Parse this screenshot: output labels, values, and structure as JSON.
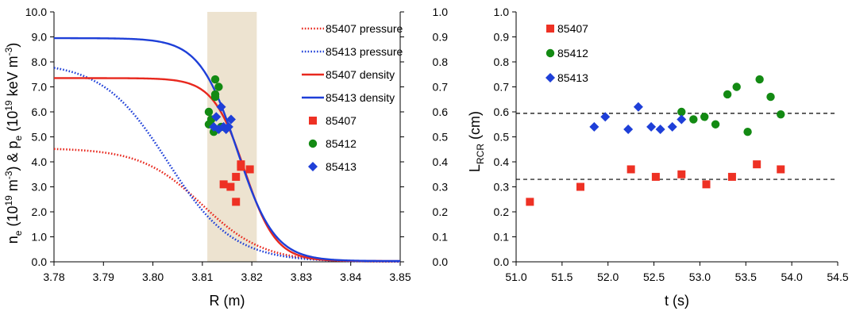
{
  "chart_data": [
    {
      "type": "scatter",
      "xlabel": "R (m)",
      "ylabel": {
        "parts": [
          "n",
          "e",
          " (10",
          "19",
          " m",
          "-3",
          ") & p",
          "e",
          " (10",
          "19",
          " keV m",
          "-3",
          ")"
        ]
      },
      "x_ticks": [
        "3.78",
        "3.79",
        "3.80",
        "3.81",
        "3.82",
        "3.83",
        "3.84",
        "3.85"
      ],
      "y_ticks": [
        "0.0",
        "1.0",
        "2.0",
        "3.0",
        "4.0",
        "5.0",
        "6.0",
        "7.0",
        "8.0",
        "9.0",
        "10.0"
      ],
      "y2_ticks": [
        "0.0",
        "0.1",
        "0.2",
        "0.3",
        "0.4",
        "0.5",
        "0.6",
        "0.7",
        "0.8",
        "0.9",
        "1.0"
      ],
      "xlim": [
        3.78,
        3.85
      ],
      "ylim": [
        0,
        10
      ],
      "y2lim": [
        0,
        1
      ],
      "shaded_band": {
        "x": [
          3.811,
          3.821
        ],
        "color": "#ede3d0"
      },
      "legend_position": "top-right",
      "series": [
        {
          "name": "85407 pressure",
          "kind": "profile",
          "style": "dotted",
          "color": "#e8281e",
          "top": 4.55,
          "bottom": 0.0,
          "center": 3.81,
          "width": 0.0062
        },
        {
          "name": "85413 pressure",
          "kind": "profile",
          "style": "dotted",
          "color": "#1e3fd8",
          "top": 8.0,
          "bottom": 0.0,
          "center": 3.803,
          "width": 0.0066
        },
        {
          "name": "85407 density",
          "kind": "profile",
          "style": "solid",
          "color": "#e8281e",
          "top": 7.35,
          "bottom": 0.03,
          "center": 3.8185,
          "width": 0.0032
        },
        {
          "name": "85413 density",
          "kind": "profile",
          "style": "solid",
          "color": "#1e3fd8",
          "top": 8.95,
          "bottom": 0.03,
          "center": 3.817,
          "width": 0.0038
        },
        {
          "name": "85407",
          "kind": "points",
          "marker": "square",
          "color": "#ee3124",
          "axis": "right",
          "x": [
            3.8143,
            3.8157,
            3.8168,
            3.8168,
            3.8178,
            3.8178,
            3.8196
          ],
          "y": [
            0.31,
            0.3,
            0.34,
            0.24,
            0.38,
            0.39,
            0.37
          ]
        },
        {
          "name": "85412",
          "kind": "points",
          "marker": "circle",
          "color": "#138a13",
          "axis": "right",
          "x": [
            3.8113,
            3.8113,
            3.8118,
            3.8123,
            3.8126,
            3.8126,
            3.8126,
            3.8133,
            3.8138
          ],
          "y": [
            0.55,
            0.6,
            0.57,
            0.52,
            0.66,
            0.67,
            0.73,
            0.7,
            0.54
          ]
        },
        {
          "name": "85413",
          "kind": "points",
          "marker": "diamond",
          "color": "#1e3fd8",
          "axis": "right",
          "x": [
            3.8123,
            3.8128,
            3.8133,
            3.8138,
            3.8143,
            3.8148,
            3.8153,
            3.8158
          ],
          "y": [
            0.54,
            0.58,
            0.53,
            0.62,
            0.54,
            0.53,
            0.54,
            0.57
          ]
        }
      ]
    },
    {
      "type": "scatter",
      "xlabel": "t (s)",
      "ylabel": {
        "parts": [
          "L",
          "RCR",
          " (cm)"
        ]
      },
      "x_ticks": [
        "51.0",
        "51.5",
        "52.0",
        "52.5",
        "53.0",
        "53.5",
        "54.0",
        "54.5"
      ],
      "y_ticks": [
        "0.0",
        "0.1",
        "0.2",
        "0.3",
        "0.4",
        "0.5",
        "0.6",
        "0.7",
        "0.8",
        "0.9",
        "1.0"
      ],
      "xlim": [
        51.0,
        54.5
      ],
      "ylim": [
        0,
        1
      ],
      "hlines": [
        0.33,
        0.594
      ],
      "legend_position": "top-left",
      "series": [
        {
          "name": "85407",
          "marker": "square",
          "color": "#ee3124",
          "x": [
            51.15,
            51.7,
            52.25,
            52.52,
            52.8,
            53.07,
            53.35,
            53.62,
            53.88
          ],
          "y": [
            0.24,
            0.3,
            0.37,
            0.34,
            0.35,
            0.31,
            0.34,
            0.39,
            0.37
          ]
        },
        {
          "name": "85412",
          "marker": "circle",
          "color": "#138a13",
          "x": [
            52.8,
            52.93,
            53.05,
            53.17,
            53.3,
            53.4,
            53.52,
            53.65,
            53.77,
            53.88
          ],
          "y": [
            0.6,
            0.57,
            0.58,
            0.55,
            0.67,
            0.7,
            0.52,
            0.73,
            0.66,
            0.59
          ]
        },
        {
          "name": "85413",
          "marker": "diamond",
          "color": "#1e3fd8",
          "x": [
            51.85,
            51.97,
            52.22,
            52.33,
            52.47,
            52.57,
            52.7,
            52.8
          ],
          "y": [
            0.54,
            0.58,
            0.53,
            0.62,
            0.54,
            0.53,
            0.54,
            0.57
          ]
        }
      ]
    }
  ]
}
